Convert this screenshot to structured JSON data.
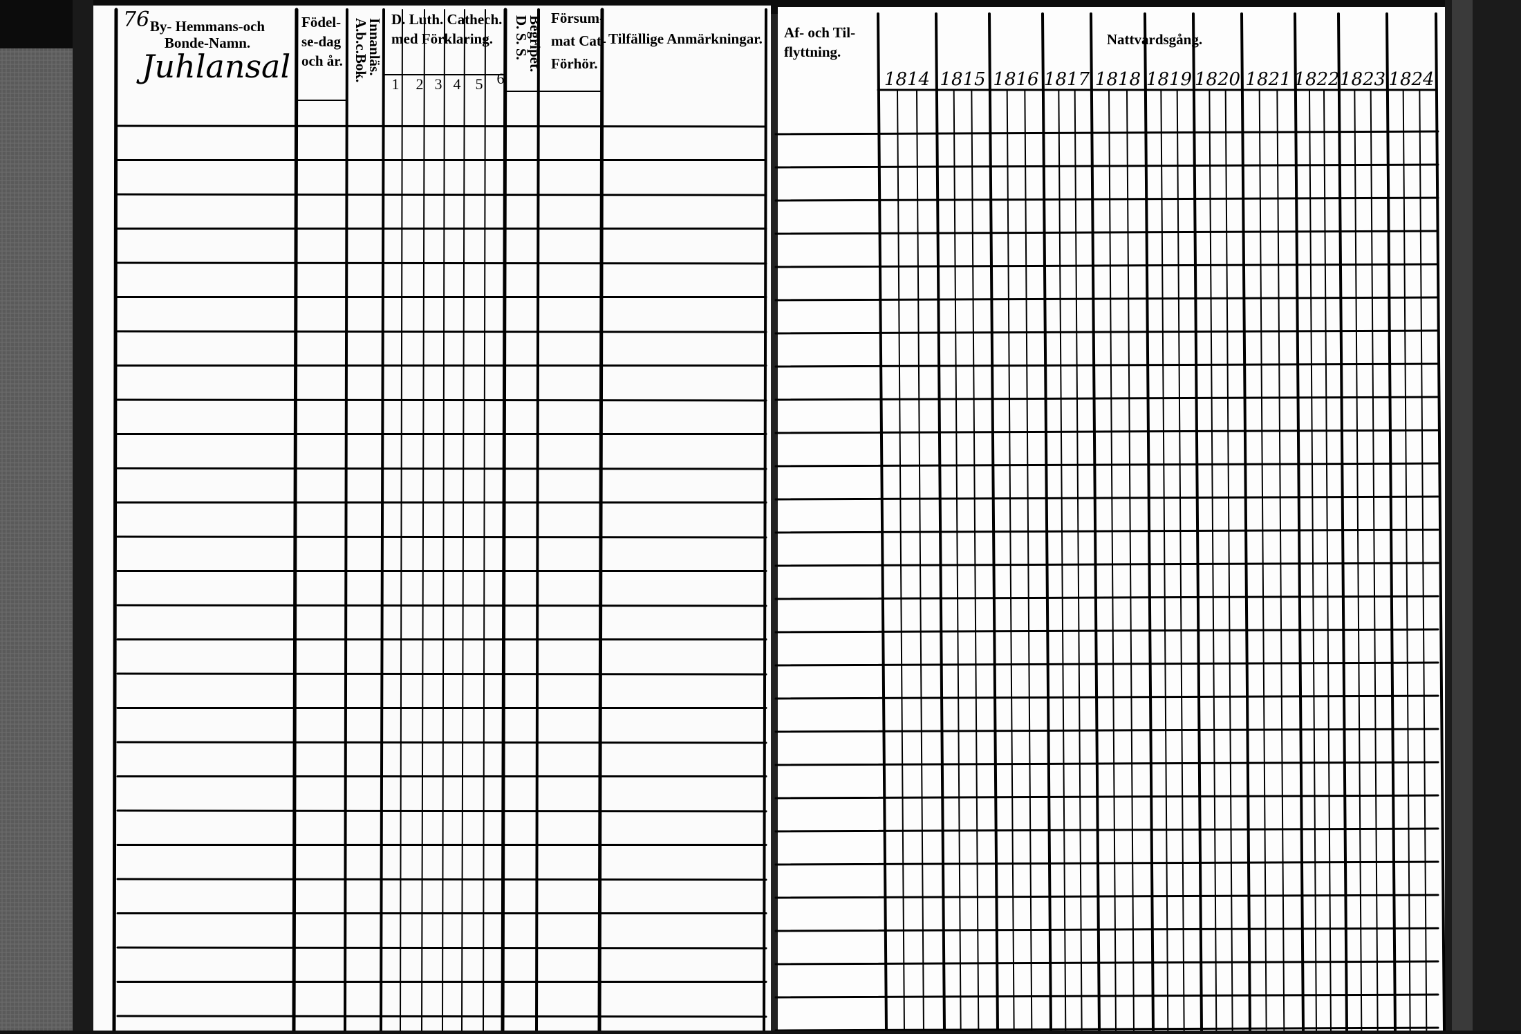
{
  "page_number": "76",
  "left_page": {
    "entry": "Juhlansal",
    "headers": [
      [
        "By- Hemmans-och",
        "Bonde-Namn."
      ],
      [
        "Födel-",
        "se-dag",
        "och år."
      ],
      [
        "A.b.c.Bok.",
        "Innanläs."
      ],
      [
        "D. Luth. Cathech.",
        "med Förklaring."
      ],
      [
        "D. S. S.",
        "Begripet."
      ],
      [
        "Försum-",
        "mat Cat-",
        "Förhör."
      ],
      [
        "Tilfällige Anmärkningar."
      ]
    ],
    "catechism_columns": [
      "1",
      "2",
      "3",
      "4",
      "5",
      "6"
    ]
  },
  "right_page": {
    "headers": [
      [
        "Af- och Til-",
        "flyttning."
      ],
      [
        "Nattvardsgång."
      ]
    ],
    "years": [
      "1814",
      "1815",
      "1816",
      "1817",
      "1818",
      "1819",
      "1820",
      "1821",
      "1822",
      "1823",
      "1824"
    ]
  }
}
